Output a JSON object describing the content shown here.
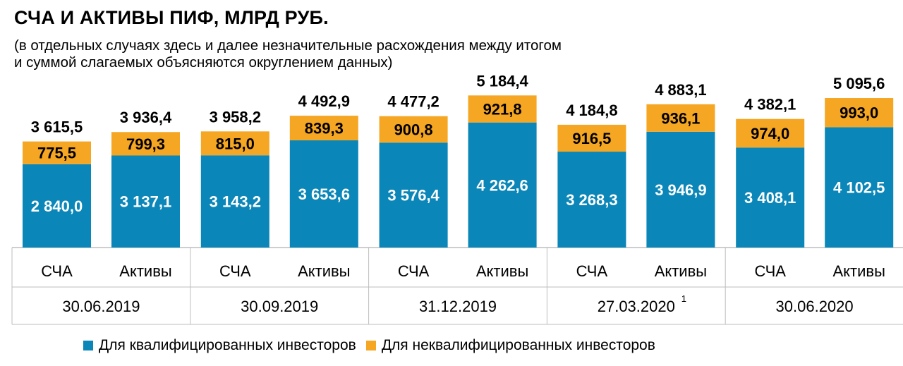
{
  "header": {
    "title": "СЧА И АКТИВЫ ПИФ, МЛРД РУБ.",
    "subtitle_line1": "(в отдельных случаях здесь и далее незначительные расхождения между итогом",
    "subtitle_line2": "и суммой слагаемых объясняются округлением данных)"
  },
  "chart_data": {
    "type": "bar",
    "stacked": true,
    "groups": [
      {
        "date": "30.06.2019",
        "footnote": "",
        "bars": [
          {
            "label": "СЧА",
            "qualified": "2 840,0",
            "unqualified": "775,5",
            "total": "3 615,5"
          },
          {
            "label": "Активы",
            "qualified": "3 137,1",
            "unqualified": "799,3",
            "total": "3 936,4"
          }
        ]
      },
      {
        "date": "30.09.2019",
        "footnote": "",
        "bars": [
          {
            "label": "СЧА",
            "qualified": "3 143,2",
            "unqualified": "815,0",
            "total": "3 958,2"
          },
          {
            "label": "Активы",
            "qualified": "3 653,6",
            "unqualified": "839,3",
            "total": "4 492,9"
          }
        ]
      },
      {
        "date": "31.12.2019",
        "footnote": "",
        "bars": [
          {
            "label": "СЧА",
            "qualified": "3 576,4",
            "unqualified": "900,8",
            "total": "4 477,2"
          },
          {
            "label": "Активы",
            "qualified": "4 262,6",
            "unqualified": "921,8",
            "total": "5 184,4"
          }
        ]
      },
      {
        "date": "27.03.2020",
        "footnote": "1",
        "bars": [
          {
            "label": "СЧА",
            "qualified": "3 268,3",
            "unqualified": "916,5",
            "total": "4 184,8"
          },
          {
            "label": "Активы",
            "qualified": "3 946,9",
            "unqualified": "936,1",
            "total": "4 883,1"
          }
        ]
      },
      {
        "date": "30.06.2020",
        "footnote": "",
        "bars": [
          {
            "label": "СЧА",
            "qualified": "3 408,1",
            "unqualified": "974,0",
            "total": "4 382,1"
          },
          {
            "label": "Активы",
            "qualified": "4 102,5",
            "unqualified": "993,0",
            "total": "5 095,6"
          }
        ]
      }
    ],
    "series": [
      {
        "key": "qualified",
        "name": "Для квалифицированных инвесторов",
        "color": "#0a86b8"
      },
      {
        "key": "unqualified",
        "name": "Для неквалифицированных инвесторов",
        "color": "#f5a623"
      }
    ],
    "legend": "bottom"
  }
}
